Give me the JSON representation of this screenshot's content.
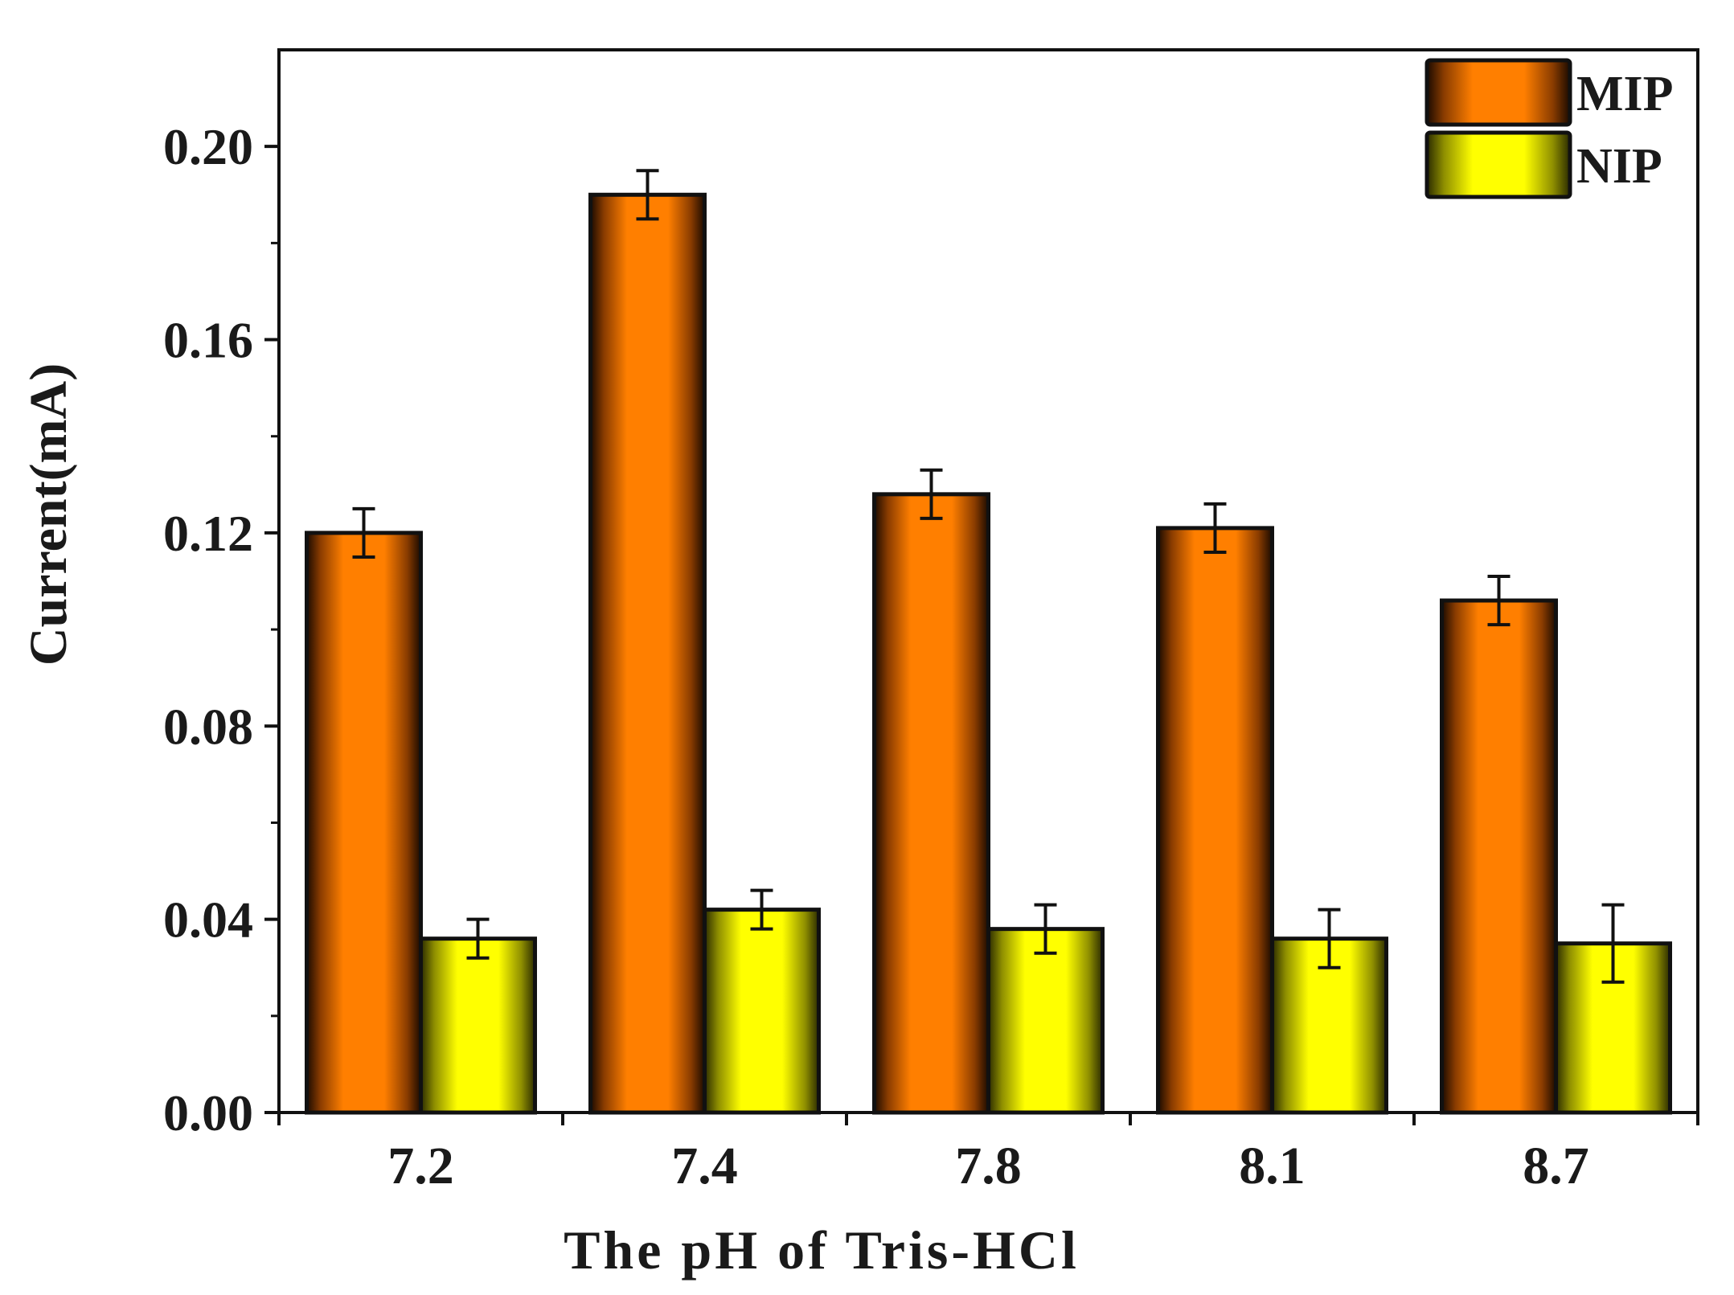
{
  "chart_data": {
    "type": "bar",
    "xlabel": "The pH of Tris-HCl",
    "ylabel": "Current(mA)",
    "categories": [
      "7.2",
      "7.4",
      "7.8",
      "8.1",
      "8.7"
    ],
    "ylim": [
      0,
      0.22
    ],
    "yticks": [
      0.0,
      0.04,
      0.08,
      0.12,
      0.16,
      0.2
    ],
    "ytick_labels": [
      "0.00",
      "0.04",
      "0.08",
      "0.12",
      "0.16",
      "0.20"
    ],
    "grid": false,
    "legend_position": "top-right",
    "series": [
      {
        "name": "MIP",
        "color": "#ff7f00",
        "values": [
          0.12,
          0.19,
          0.128,
          0.121,
          0.106
        ],
        "errors": [
          0.005,
          0.005,
          0.005,
          0.005,
          0.005
        ]
      },
      {
        "name": "NIP",
        "color": "#ffff00",
        "values": [
          0.036,
          0.042,
          0.038,
          0.036,
          0.035
        ],
        "errors": [
          0.004,
          0.004,
          0.005,
          0.006,
          0.008
        ]
      }
    ]
  }
}
